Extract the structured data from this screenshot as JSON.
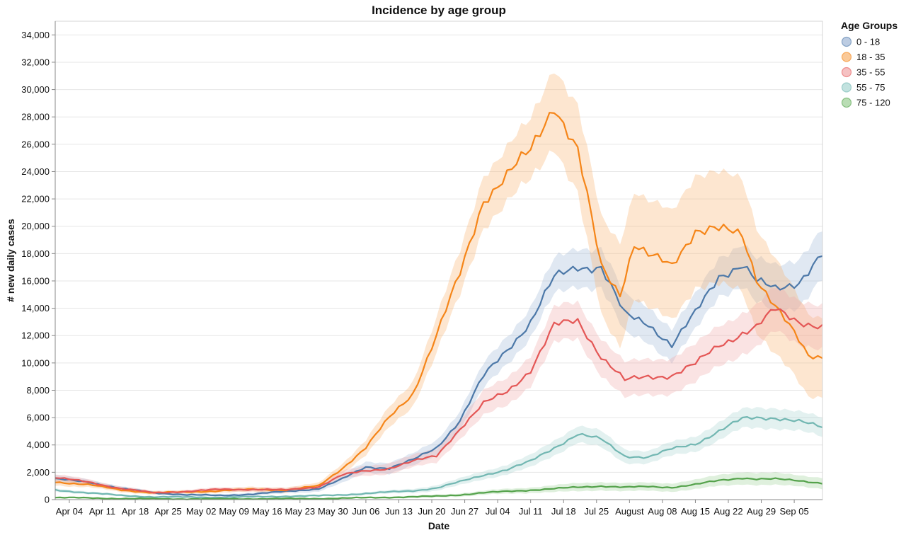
{
  "chart_data": {
    "type": "line",
    "title": "Incidence by age group",
    "xlabel": "Date",
    "ylabel": "# new daily cases",
    "ylim": [
      0,
      35000
    ],
    "y_ticks": [
      0,
      2000,
      4000,
      6000,
      8000,
      10000,
      12000,
      14000,
      16000,
      18000,
      20000,
      22000,
      24000,
      26000,
      28000,
      30000,
      32000,
      34000
    ],
    "y_tick_labels": [
      "0",
      "2,000",
      "4,000",
      "6,000",
      "8,000",
      "10,000",
      "12,000",
      "14,000",
      "16,000",
      "18,000",
      "20,000",
      "22,000",
      "24,000",
      "26,000",
      "28,000",
      "30,000",
      "32,000",
      "34,000"
    ],
    "xlim": [
      "Apr 01",
      "Sep 11"
    ],
    "x_ticks": [
      "Apr 04",
      "Apr 11",
      "Apr 18",
      "Apr 25",
      "May 02",
      "May 09",
      "May 16",
      "May 23",
      "May 30",
      "Jun 06",
      "Jun 13",
      "Jun 20",
      "Jun 27",
      "Jul 04",
      "Jul 11",
      "Jul 18",
      "Jul 25",
      "August",
      "Aug 08",
      "Aug 15",
      "Aug 22",
      "Aug 29",
      "Sep 05"
    ],
    "grid": "horizontal",
    "legend": {
      "title": "Age Groups",
      "placement": "top-right"
    },
    "band_opacity": 0.32,
    "series": [
      {
        "name": "0 - 18",
        "color": "#4c78a8",
        "band_color": "#9fb6d6",
        "x": [
          "Apr 01",
          "Apr 08",
          "Apr 15",
          "Apr 22",
          "Apr 29",
          "May 06",
          "May 13",
          "May 20",
          "May 27",
          "Jun 01",
          "Jun 06",
          "Jun 11",
          "Jun 16",
          "Jun 21",
          "Jun 26",
          "Jul 01",
          "Jul 06",
          "Jul 11",
          "Jul 16",
          "Jul 21",
          "Jul 26",
          "Jul 31",
          "Aug 05",
          "Aug 10",
          "Aug 15",
          "Aug 20",
          "Aug 25",
          "Aug 28",
          "Sep 01",
          "Sep 06",
          "Sep 11"
        ],
        "y": [
          1500,
          1300,
          800,
          500,
          350,
          300,
          400,
          600,
          800,
          1500,
          2400,
          2300,
          2900,
          3800,
          5800,
          9000,
          11000,
          13000,
          16200,
          17100,
          17000,
          13500,
          12900,
          11300,
          13600,
          16400,
          17200,
          15900,
          15400,
          16000,
          17900
        ],
        "band": [
          250,
          200,
          150,
          100,
          100,
          100,
          120,
          150,
          200,
          300,
          400,
          400,
          450,
          550,
          700,
          900,
          1000,
          1100,
          1300,
          1400,
          1450,
          1400,
          1300,
          1200,
          1300,
          1400,
          1550,
          1600,
          1700,
          1750,
          1800
        ]
      },
      {
        "name": "18 - 35",
        "color": "#f58518",
        "band_color": "#f8b26c",
        "x": [
          "Apr 01",
          "Apr 08",
          "Apr 15",
          "Apr 22",
          "Apr 29",
          "May 06",
          "May 13",
          "May 20",
          "May 27",
          "Jun 01",
          "Jun 06",
          "Jun 11",
          "Jun 16",
          "Jun 21",
          "Jun 26",
          "Jul 01",
          "Jul 06",
          "Jul 11",
          "Jul 16",
          "Jul 21",
          "Jul 26",
          "Jul 30",
          "Aug 02",
          "Aug 05",
          "Aug 10",
          "Aug 15",
          "Aug 19",
          "Aug 25",
          "Aug 28",
          "Sep 01",
          "Sep 04",
          "Sep 08",
          "Sep 11"
        ],
        "y": [
          1300,
          1100,
          700,
          500,
          550,
          650,
          750,
          700,
          1000,
          2300,
          3800,
          6000,
          7800,
          12000,
          16500,
          22000,
          23700,
          25500,
          29000,
          25500,
          17000,
          15100,
          18800,
          17900,
          17000,
          19800,
          19900,
          19200,
          16200,
          14300,
          12700,
          10400,
          10400
        ],
        "band": [
          250,
          200,
          150,
          120,
          120,
          150,
          180,
          180,
          220,
          350,
          550,
          750,
          900,
          1300,
          1600,
          1900,
          2000,
          2200,
          2900,
          3200,
          3600,
          3800,
          3900,
          3900,
          4000,
          4100,
          4100,
          4100,
          3800,
          3500,
          3200,
          3000,
          2900
        ]
      },
      {
        "name": "35 - 55",
        "color": "#e45756",
        "band_color": "#f1a7a8",
        "x": [
          "Apr 01",
          "Apr 08",
          "Apr 15",
          "Apr 22",
          "Apr 29",
          "May 06",
          "May 13",
          "May 20",
          "May 27",
          "Jun 01",
          "Jun 06",
          "Jun 11",
          "Jun 16",
          "Jun 21",
          "Jun 26",
          "Jul 01",
          "Jul 06",
          "Jul 11",
          "Jul 16",
          "Jul 21",
          "Jul 26",
          "Jul 31",
          "Aug 05",
          "Aug 10",
          "Aug 15",
          "Aug 20",
          "Aug 25",
          "Aug 28",
          "Sep 01",
          "Sep 06",
          "Sep 11"
        ],
        "y": [
          1600,
          1300,
          800,
          500,
          600,
          750,
          750,
          700,
          950,
          1800,
          2100,
          2300,
          2800,
          3200,
          5200,
          7000,
          7900,
          9500,
          12700,
          13100,
          10500,
          8700,
          9000,
          9100,
          9900,
          11300,
          12200,
          12600,
          13900,
          13100,
          12600
        ],
        "band": [
          250,
          200,
          150,
          120,
          120,
          150,
          150,
          150,
          200,
          300,
          350,
          400,
          450,
          500,
          700,
          900,
          1000,
          1100,
          1300,
          1350,
          1350,
          1300,
          1300,
          1300,
          1400,
          1450,
          1500,
          1550,
          1600,
          1600,
          1600
        ]
      },
      {
        "name": "55 - 75",
        "color": "#72b7b2",
        "band_color": "#a8d5d1",
        "x": [
          "Apr 01",
          "Apr 08",
          "Apr 15",
          "Apr 22",
          "Apr 29",
          "May 06",
          "May 13",
          "May 20",
          "May 27",
          "Jun 01",
          "Jun 06",
          "Jun 11",
          "Jun 16",
          "Jun 21",
          "Jun 26",
          "Jul 01",
          "Jul 06",
          "Jul 11",
          "Jul 16",
          "Jul 21",
          "Jul 26",
          "Jul 31",
          "Aug 05",
          "Aug 10",
          "Aug 15",
          "Aug 20",
          "Aug 25",
          "Aug 28",
          "Sep 01",
          "Sep 06",
          "Sep 11"
        ],
        "y": [
          700,
          500,
          300,
          200,
          180,
          170,
          200,
          250,
          280,
          350,
          450,
          550,
          650,
          850,
          1300,
          1800,
          2200,
          2800,
          3800,
          4800,
          4400,
          3200,
          3100,
          3700,
          4100,
          5000,
          5900,
          6000,
          6000,
          5700,
          5300
        ],
        "band": [
          120,
          100,
          80,
          60,
          50,
          50,
          50,
          60,
          70,
          80,
          100,
          120,
          150,
          200,
          250,
          300,
          350,
          450,
          550,
          600,
          600,
          500,
          450,
          500,
          550,
          650,
          700,
          750,
          750,
          700,
          700
        ]
      },
      {
        "name": "75 - 120",
        "color": "#54a24b",
        "band_color": "#9bcf94",
        "x": [
          "Apr 01",
          "Apr 08",
          "Apr 15",
          "Apr 22",
          "Apr 29",
          "May 06",
          "May 13",
          "May 20",
          "May 27",
          "Jun 01",
          "Jun 06",
          "Jun 11",
          "Jun 16",
          "Jun 21",
          "Jun 26",
          "Jul 01",
          "Jul 06",
          "Jul 11",
          "Jul 16",
          "Jul 21",
          "Jul 26",
          "Jul 31",
          "Aug 05",
          "Aug 10",
          "Aug 15",
          "Aug 20",
          "Aug 25",
          "Aug 28",
          "Sep 01",
          "Sep 06",
          "Sep 11"
        ],
        "y": [
          150,
          120,
          80,
          60,
          50,
          50,
          60,
          70,
          80,
          100,
          140,
          170,
          200,
          250,
          350,
          500,
          600,
          700,
          800,
          900,
          1000,
          900,
          950,
          900,
          1100,
          1400,
          1600,
          1500,
          1500,
          1400,
          1200
        ],
        "band": [
          60,
          50,
          40,
          30,
          30,
          30,
          30,
          30,
          40,
          50,
          60,
          70,
          80,
          100,
          120,
          150,
          180,
          200,
          250,
          300,
          300,
          300,
          300,
          300,
          350,
          400,
          450,
          450,
          450,
          400,
          400
        ]
      }
    ]
  }
}
